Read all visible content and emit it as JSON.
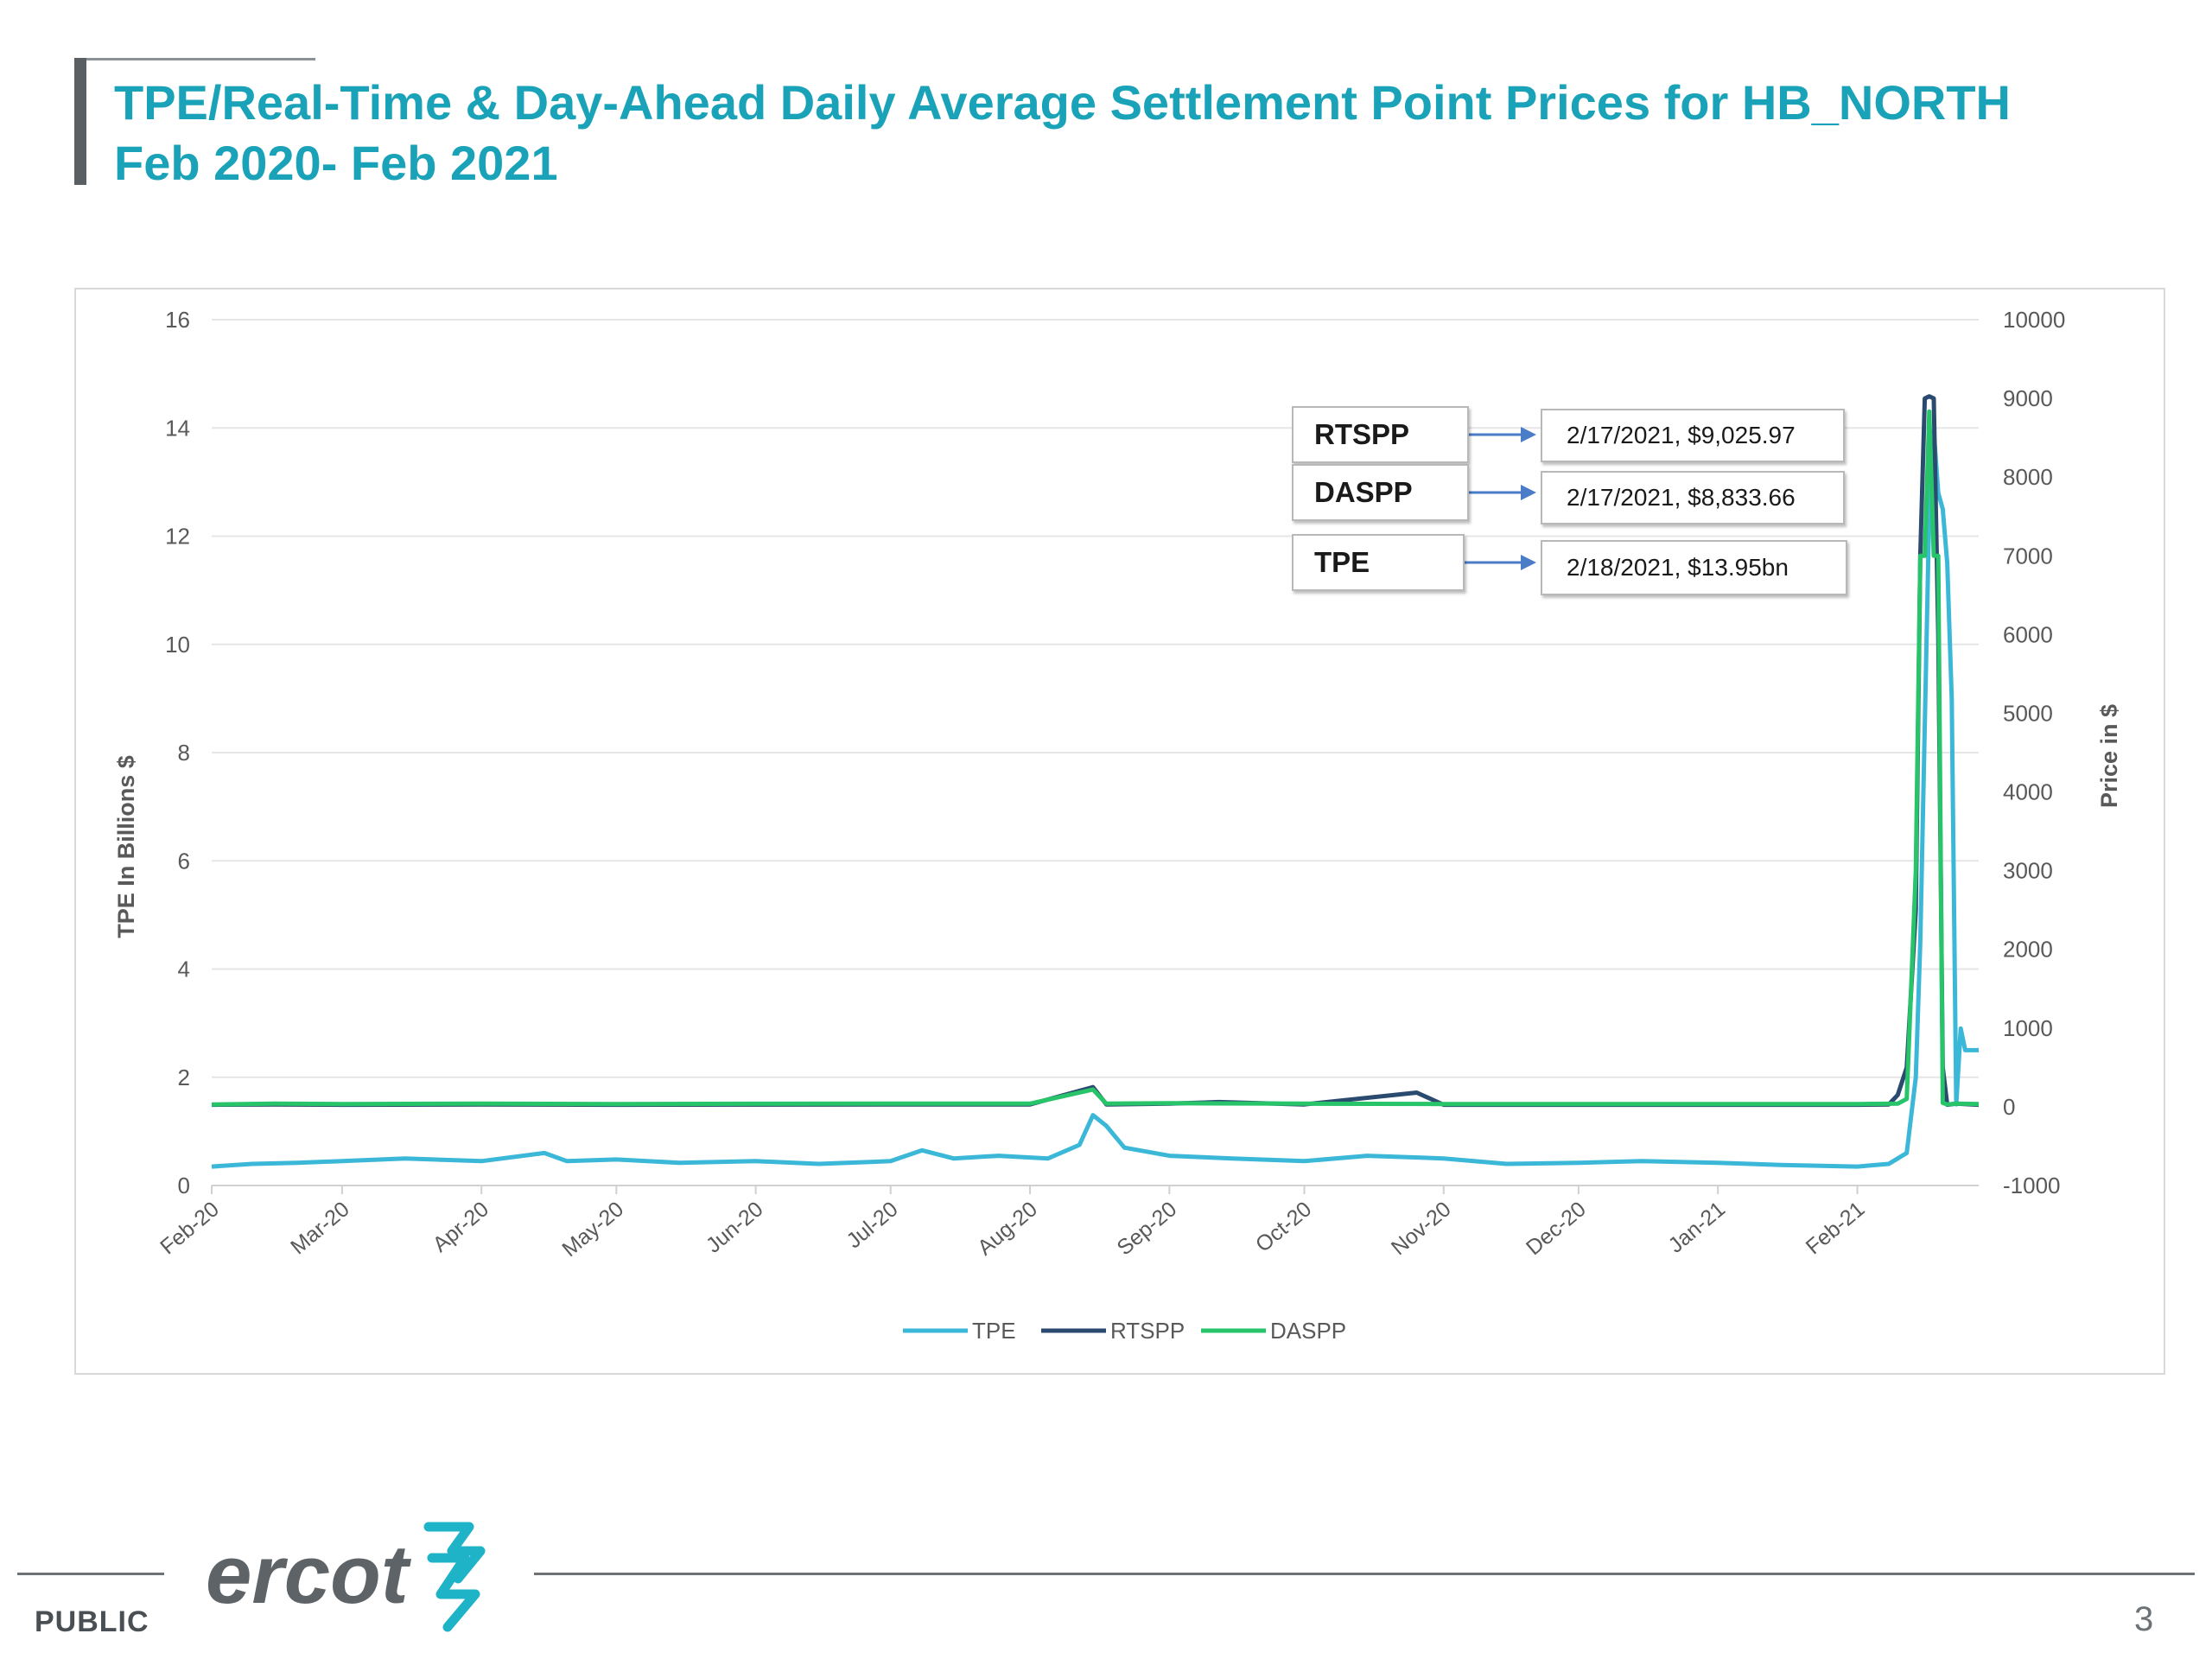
{
  "slide": {
    "title_line1": "TPE/Real-Time & Day-Ahead Daily Average Settlement Point Prices for HB_NORTH",
    "title_line2": "Feb 2020- Feb 2021",
    "footer_public": "PUBLIC",
    "page_number": "3",
    "logo_text": "ercot"
  },
  "annotations": [
    {
      "label": "RTSPP",
      "value": "2/17/2021, $9,025.97"
    },
    {
      "label": "DASPP",
      "value": "2/17/2021, $8,833.66"
    },
    {
      "label": "TPE",
      "value": "2/18/2021, $13.95bn"
    }
  ],
  "chart_data": {
    "type": "line",
    "title": "",
    "ylabel_left": "TPE In Billions $",
    "ylabel_right": "Price in $",
    "xlim": [
      "2020-02-01",
      "2021-02-28"
    ],
    "ylim_left": [
      0,
      16
    ],
    "ylim_right": [
      -1000,
      10000
    ],
    "yticks_left": [
      "0",
      "2",
      "4",
      "6",
      "8",
      "10",
      "12",
      "14",
      "16"
    ],
    "yticks_right": [
      "-1000",
      "0",
      "1000",
      "2000",
      "3000",
      "4000",
      "5000",
      "6000",
      "7000",
      "8000",
      "9000",
      "10000"
    ],
    "xtick_labels": [
      "Feb-20",
      "Mar-20",
      "Apr-20",
      "May-20",
      "Jun-20",
      "Jul-20",
      "Aug-20",
      "Sep-20",
      "Oct-20",
      "Nov-20",
      "Dec-20",
      "Jan-21",
      "Feb-21"
    ],
    "xtick_dates": [
      "2020-02-01",
      "2020-03-01",
      "2020-04-01",
      "2020-05-01",
      "2020-06-01",
      "2020-07-01",
      "2020-08-01",
      "2020-09-01",
      "2020-10-01",
      "2020-11-01",
      "2020-12-01",
      "2021-01-01",
      "2021-02-01"
    ],
    "grid": true,
    "legend_position": "bottom",
    "colors": {
      "TPE": "#3bb7d8",
      "RTSPP": "#2a4a6f",
      "DASPP": "#27c46a"
    },
    "series": [
      {
        "name": "TPE",
        "axis": "left",
        "x": [
          "2020-02-01",
          "2020-02-10",
          "2020-02-20",
          "2020-03-01",
          "2020-03-15",
          "2020-04-01",
          "2020-04-15",
          "2020-04-20",
          "2020-05-01",
          "2020-05-15",
          "2020-06-01",
          "2020-06-15",
          "2020-07-01",
          "2020-07-08",
          "2020-07-15",
          "2020-07-25",
          "2020-08-05",
          "2020-08-12",
          "2020-08-15",
          "2020-08-18",
          "2020-08-22",
          "2020-09-01",
          "2020-09-15",
          "2020-10-01",
          "2020-10-15",
          "2020-11-01",
          "2020-11-15",
          "2020-12-01",
          "2020-12-15",
          "2021-01-01",
          "2021-01-15",
          "2021-02-01",
          "2021-02-08",
          "2021-02-10",
          "2021-02-12",
          "2021-02-14",
          "2021-02-15",
          "2021-02-16",
          "2021-02-17",
          "2021-02-18",
          "2021-02-19",
          "2021-02-20",
          "2021-02-21",
          "2021-02-22",
          "2021-02-23",
          "2021-02-24",
          "2021-02-25",
          "2021-02-28"
        ],
        "y": [
          0.35,
          0.4,
          0.42,
          0.45,
          0.5,
          0.45,
          0.6,
          0.45,
          0.48,
          0.42,
          0.45,
          0.4,
          0.45,
          0.65,
          0.5,
          0.55,
          0.5,
          0.75,
          1.3,
          1.1,
          0.7,
          0.55,
          0.5,
          0.45,
          0.55,
          0.5,
          0.4,
          0.42,
          0.45,
          0.42,
          0.38,
          0.35,
          0.4,
          0.5,
          0.6,
          2.0,
          4.5,
          8.5,
          12.5,
          13.95,
          12.8,
          12.5,
          11.5,
          9.0,
          1.5,
          2.9,
          2.5,
          2.5
        ]
      },
      {
        "name": "RTSPP",
        "axis": "right",
        "x": [
          "2020-02-01",
          "2020-02-15",
          "2020-03-01",
          "2020-04-01",
          "2020-05-01",
          "2020-06-01",
          "2020-07-01",
          "2020-08-01",
          "2020-08-15",
          "2020-08-18",
          "2020-09-01",
          "2020-09-12",
          "2020-10-01",
          "2020-10-26",
          "2020-11-01",
          "2020-12-01",
          "2021-01-01",
          "2021-02-01",
          "2021-02-08",
          "2021-02-10",
          "2021-02-12",
          "2021-02-14",
          "2021-02-15",
          "2021-02-16",
          "2021-02-17",
          "2021-02-18",
          "2021-02-19",
          "2021-02-20",
          "2021-02-21",
          "2021-02-23",
          "2021-02-28"
        ],
        "y": [
          25,
          30,
          25,
          30,
          25,
          28,
          30,
          30,
          250,
          30,
          40,
          60,
          30,
          180,
          25,
          25,
          25,
          25,
          30,
          150,
          500,
          2500,
          7000,
          9000,
          9025.97,
          9000,
          6000,
          500,
          25,
          40,
          25
        ]
      },
      {
        "name": "DASPP",
        "axis": "right",
        "x": [
          "2020-02-01",
          "2020-02-15",
          "2020-03-01",
          "2020-04-01",
          "2020-05-01",
          "2020-06-01",
          "2020-07-01",
          "2020-08-01",
          "2020-08-15",
          "2020-08-18",
          "2020-09-01",
          "2020-10-01",
          "2020-11-01",
          "2020-12-01",
          "2021-01-01",
          "2021-02-01",
          "2021-02-10",
          "2021-02-12",
          "2021-02-14",
          "2021-02-15",
          "2021-02-16",
          "2021-02-17",
          "2021-02-18",
          "2021-02-19",
          "2021-02-20",
          "2021-02-21",
          "2021-02-23",
          "2021-02-28"
        ],
        "y": [
          30,
          40,
          35,
          40,
          35,
          38,
          40,
          40,
          220,
          40,
          45,
          40,
          35,
          35,
          35,
          35,
          40,
          100,
          3000,
          7000,
          7000,
          8833.66,
          7000,
          7000,
          50,
          30,
          40,
          35
        ]
      }
    ]
  }
}
